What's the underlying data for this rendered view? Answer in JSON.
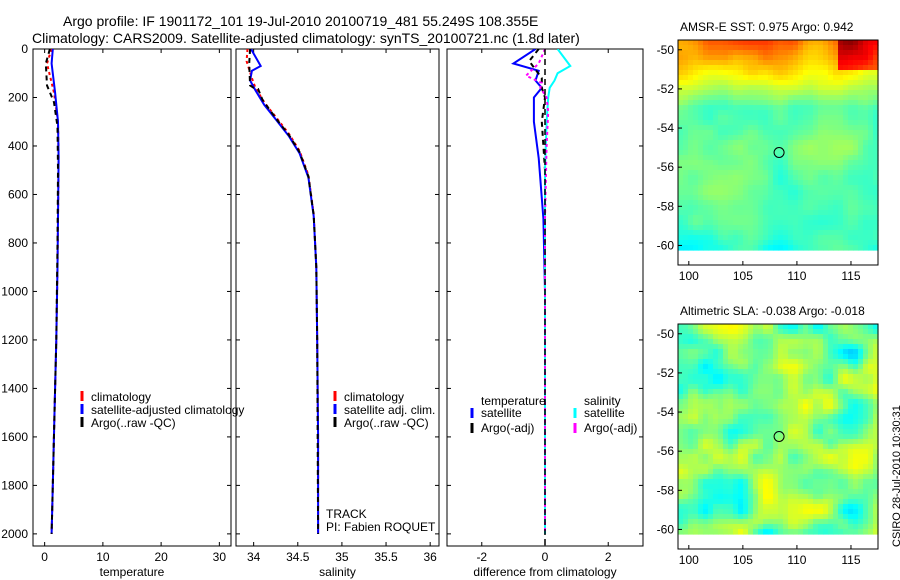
{
  "title": {
    "line1": "Argo profile: IF 1901172_101 19-Jul-2010 20100719_481 55.249S 108.355E",
    "line2": "Climatology: CARS2009. Satellite-adjusted climatology: synTS_20100721.nc (1.8d later)"
  },
  "credit": "CSIRO 28-Jul-2010 10:30:31",
  "colors": {
    "climatology": "#ff0000",
    "satellite": "#0000ff",
    "argo": "#000000",
    "salinity_satellite": "#00ffff",
    "salinity_argo": "#ff00ff"
  },
  "chart_data": [
    {
      "type": "line",
      "id": "temperature",
      "xlabel": "temperature",
      "xlim": [
        -2,
        32
      ],
      "xticks": [
        0,
        10,
        20,
        30
      ],
      "ylim": [
        0,
        2050
      ],
      "yticks": [
        0,
        200,
        400,
        600,
        800,
        1000,
        1200,
        1400,
        1600,
        1800,
        2000
      ],
      "legend": [
        {
          "label": "climatology",
          "color": "#ff0000"
        },
        {
          "label": "satellite-adjusted climatology",
          "color": "#0000ff"
        },
        {
          "label": "Argo(..raw -QC)",
          "color": "#000000"
        }
      ],
      "series": [
        {
          "name": "climatology",
          "color": "#ff0000",
          "dash": "3,3",
          "x": [
            1.2,
            0.4,
            1.6,
            2.3,
            2.4,
            2.3,
            2.2,
            2.0,
            1.7,
            1.4,
            1.2
          ],
          "y": [
            0,
            60,
            180,
            300,
            450,
            700,
            900,
            1200,
            1500,
            1800,
            2000
          ]
        },
        {
          "name": "satellite-adjusted climatology",
          "color": "#0000ff",
          "dash": "",
          "x": [
            1.4,
            1.2,
            1.8,
            2.3,
            2.4,
            2.3,
            2.2,
            2.0,
            1.7,
            1.4,
            1.2
          ],
          "y": [
            0,
            60,
            180,
            300,
            450,
            700,
            900,
            1200,
            1500,
            1800,
            2000
          ]
        },
        {
          "name": "Argo(..raw -QC)",
          "color": "#000000",
          "dash": "5,4",
          "x": [
            0.9,
            0.2,
            0.4,
            1.6,
            2.2,
            2.3,
            2.2,
            2.0,
            1.7,
            1.4,
            1.2
          ],
          "y": [
            0,
            60,
            150,
            220,
            320,
            500,
            800,
            1200,
            1500,
            1800,
            2000
          ]
        }
      ]
    },
    {
      "type": "line",
      "id": "salinity",
      "xlabel": "salinity",
      "xlim": [
        33.8,
        36.1
      ],
      "xticks": [
        34,
        34.5,
        35,
        35.5,
        36
      ],
      "xticklabels": [
        "34",
        "34.5",
        "35",
        "35.5",
        "36"
      ],
      "ylim": [
        0,
        2050
      ],
      "legend": [
        {
          "label": "climatology",
          "color": "#ff0000"
        },
        {
          "label": "satellite adj. clim.",
          "color": "#0000ff"
        },
        {
          "label": "Argo(..raw -QC)",
          "color": "#000000"
        }
      ],
      "annotation": [
        "TRACK",
        "PI: Fabien ROQUET"
      ],
      "series": [
        {
          "name": "climatology",
          "color": "#ff0000",
          "dash": "3,3",
          "x": [
            33.93,
            33.92,
            33.98,
            34.02,
            34.12,
            34.25,
            34.4,
            34.52,
            34.62,
            34.68,
            34.71,
            34.72,
            34.73,
            34.73
          ],
          "y": [
            0,
            50,
            120,
            160,
            220,
            280,
            350,
            420,
            520,
            680,
            900,
            1200,
            1600,
            2000
          ]
        },
        {
          "name": "satellite adj. clim.",
          "color": "#0000ff",
          "dash": "",
          "x": [
            33.97,
            34.08,
            33.98,
            33.96,
            34.02,
            34.12,
            34.25,
            34.4,
            34.52,
            34.62,
            34.68,
            34.71,
            34.72,
            34.73,
            34.73
          ],
          "y": [
            0,
            70,
            90,
            130,
            170,
            230,
            290,
            360,
            430,
            530,
            690,
            900,
            1200,
            1600,
            2000
          ]
        },
        {
          "name": "Argo(..raw -QC)",
          "color": "#000000",
          "dash": "5,4",
          "x": [
            33.96,
            33.95,
            33.96,
            34.0,
            34.05,
            34.1,
            34.25,
            34.4,
            34.52,
            34.62,
            34.68,
            34.71,
            34.72,
            34.73
          ],
          "y": [
            0,
            60,
            150,
            160,
            165,
            210,
            285,
            355,
            425,
            525,
            685,
            900,
            1200,
            2000
          ]
        }
      ]
    },
    {
      "type": "line",
      "id": "difference",
      "xlabel": "difference from climatology",
      "xlim": [
        -3.1,
        3.1
      ],
      "xticks": [
        -2,
        0,
        2
      ],
      "ylim": [
        0,
        2050
      ],
      "legend_headers": [
        "temperature",
        "salinity"
      ],
      "legend": [
        {
          "label": "satellite",
          "color": "#0000ff"
        },
        {
          "label": "Argo(-adj)",
          "color": "#000000"
        },
        {
          "label": "satellite",
          "color": "#00ffff"
        },
        {
          "label": "Argo(-adj)",
          "color": "#ff00ff"
        }
      ],
      "series": [
        {
          "name": "temperature satellite",
          "color": "#0000ff",
          "dash": "",
          "x": [
            -0.3,
            -1.0,
            -0.2,
            -0.3,
            -0.1,
            -0.35,
            -0.35,
            -0.2,
            -0.05,
            0,
            0
          ],
          "y": [
            0,
            60,
            90,
            130,
            160,
            200,
            300,
            450,
            700,
            1000,
            2000
          ]
        },
        {
          "name": "temperature Argo(-adj)",
          "color": "#000000",
          "dash": "5,4",
          "x": [
            -0.2,
            -0.5,
            -0.1,
            -0.1,
            0,
            -0.1,
            0,
            0
          ],
          "y": [
            0,
            50,
            120,
            160,
            200,
            300,
            500,
            2000
          ]
        },
        {
          "name": "salinity satellite",
          "color": "#00ffff",
          "dash": "",
          "x": [
            0.4,
            0.8,
            0.4,
            0.3,
            0.15,
            0.1,
            0.05,
            0,
            0
          ],
          "y": [
            0,
            70,
            100,
            130,
            160,
            200,
            300,
            500,
            2000
          ]
        },
        {
          "name": "salinity Argo(-adj)",
          "color": "#ff00ff",
          "dash": "3,3",
          "x": [
            0,
            -0.2,
            -0.6,
            -0.1,
            -0.15,
            0.05,
            0.1,
            0.05,
            0,
            0
          ],
          "y": [
            0,
            60,
            110,
            140,
            160,
            200,
            260,
            400,
            700,
            2000
          ]
        }
      ]
    },
    {
      "type": "heatmap",
      "id": "sst",
      "title": "AMSR-E SST: 0.975 Argo: 0.942",
      "xlim": [
        99,
        117.5
      ],
      "ylim": [
        -61,
        -49.5
      ],
      "xticks": [
        100,
        105,
        110,
        115
      ],
      "yticks": [
        -50,
        -52,
        -54,
        -56,
        -58,
        -60
      ],
      "marker": [
        108.35,
        -55.25
      ],
      "colorscale": "jet"
    },
    {
      "type": "heatmap",
      "id": "sla",
      "title": "Altimetric SLA: -0.038 Argo: -0.018",
      "xlim": [
        99,
        117.5
      ],
      "ylim": [
        -61,
        -49.5
      ],
      "xticks": [
        100,
        105,
        110,
        115
      ],
      "yticks": [
        -50,
        -52,
        -54,
        -56,
        -58,
        -60
      ],
      "marker": [
        108.35,
        -55.25
      ],
      "colorscale": "jet"
    }
  ]
}
